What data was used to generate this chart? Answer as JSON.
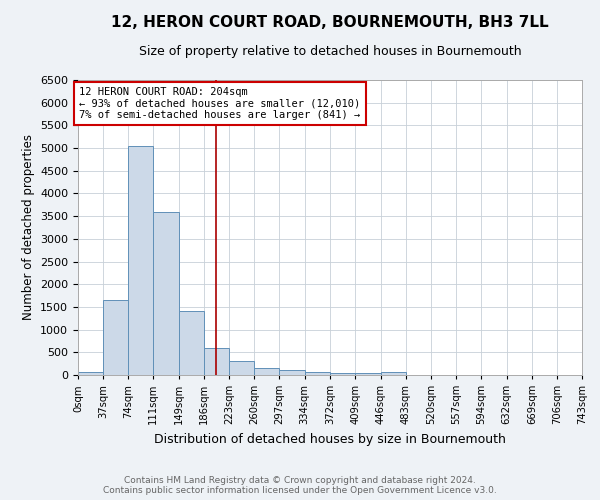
{
  "title": "12, HERON COURT ROAD, BOURNEMOUTH, BH3 7LL",
  "subtitle": "Size of property relative to detached houses in Bournemouth",
  "xlabel": "Distribution of detached houses by size in Bournemouth",
  "ylabel": "Number of detached properties",
  "bar_color": "#ccd9e8",
  "bar_edge_color": "#6090b8",
  "bin_edges": [
    0,
    37,
    74,
    111,
    149,
    186,
    223,
    260,
    297,
    334,
    372,
    409,
    446,
    483,
    520,
    557,
    594,
    632,
    669,
    706,
    743
  ],
  "bin_labels": [
    "0sqm",
    "37sqm",
    "74sqm",
    "111sqm",
    "149sqm",
    "186sqm",
    "223sqm",
    "260sqm",
    "297sqm",
    "334sqm",
    "372sqm",
    "409sqm",
    "446sqm",
    "483sqm",
    "520sqm",
    "557sqm",
    "594sqm",
    "632sqm",
    "669sqm",
    "706sqm",
    "743sqm"
  ],
  "counts": [
    75,
    1650,
    5050,
    3600,
    1400,
    600,
    300,
    150,
    110,
    75,
    40,
    40,
    60,
    0,
    0,
    0,
    0,
    0,
    0,
    0
  ],
  "property_size": 204,
  "property_line_color": "#aa0000",
  "annotation_text": "12 HERON COURT ROAD: 204sqm\n← 93% of detached houses are smaller (12,010)\n7% of semi-detached houses are larger (841) →",
  "annotation_box_color": "#ffffff",
  "annotation_box_edge_color": "#cc0000",
  "ylim": [
    0,
    6500
  ],
  "yticks": [
    0,
    500,
    1000,
    1500,
    2000,
    2500,
    3000,
    3500,
    4000,
    4500,
    5000,
    5500,
    6000,
    6500
  ],
  "footer_line1": "Contains HM Land Registry data © Crown copyright and database right 2024.",
  "footer_line2": "Contains public sector information licensed under the Open Government Licence v3.0.",
  "background_color": "#eef2f6",
  "plot_bg_color": "#ffffff",
  "grid_color": "#c8d0d8"
}
